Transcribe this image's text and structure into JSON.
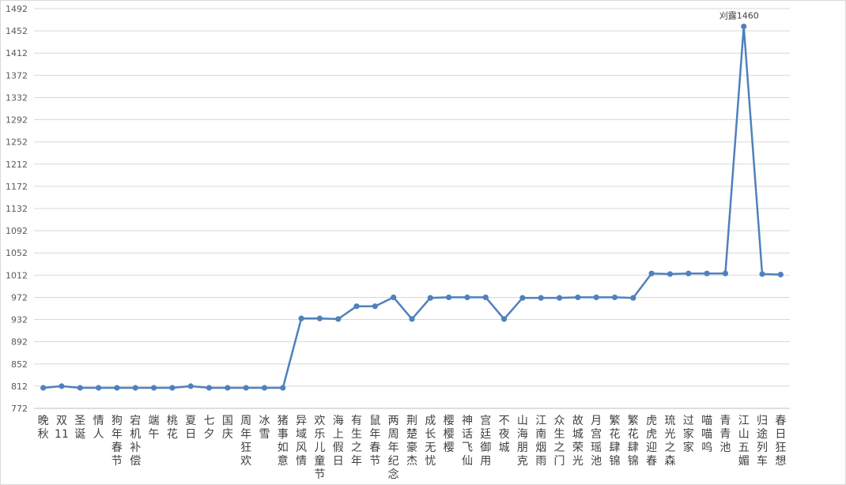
{
  "chart_data": {
    "type": "line",
    "title": "",
    "xlabel": "",
    "ylabel": "",
    "ylim": [
      772,
      1492
    ],
    "yticks": [
      772,
      812,
      852,
      892,
      932,
      972,
      1012,
      1052,
      1092,
      1132,
      1172,
      1212,
      1252,
      1292,
      1332,
      1372,
      1412,
      1452,
      1492
    ],
    "grid": true,
    "legend": "none",
    "categories": [
      "晚秋",
      "双11",
      "圣诞",
      "情人",
      "狗年春节",
      "宕机补偿",
      "端午",
      "桃花",
      "夏日",
      "七夕",
      "国庆",
      "周年狂欢",
      "冰雪",
      "猪事如意",
      "异域风情",
      "欢乐儿童节",
      "海上假日",
      "有生之年",
      "鼠年春节",
      "两周年纪念",
      "荆楚豪杰",
      "成长无忧",
      "樱樱樱",
      "神话飞仙",
      "宫廷御用",
      "不夜城",
      "山海朋克",
      "江南烟雨",
      "众生之门",
      "故城荣光",
      "月宫瑶池",
      "繁花肆锦",
      "繁花肆锦",
      "虎虎迎春",
      "琉光之森",
      "过家家",
      "喵喵呜",
      "青青池",
      "江山五媚",
      "归途列车",
      "春日狂想"
    ],
    "series": [
      {
        "color": "#4f81bd",
        "values": [
          809,
          812,
          809,
          809,
          809,
          809,
          809,
          809,
          812,
          809,
          809,
          809,
          809,
          809,
          934,
          934,
          933,
          956,
          956,
          972,
          933,
          971,
          972,
          972,
          972,
          933,
          971,
          971,
          971,
          972,
          972,
          972,
          971,
          1015,
          1014,
          1015,
          1015,
          1015,
          1460,
          1014,
          1013
        ]
      }
    ],
    "annotations": [
      {
        "index": 38,
        "text": "刈露1460"
      }
    ]
  }
}
